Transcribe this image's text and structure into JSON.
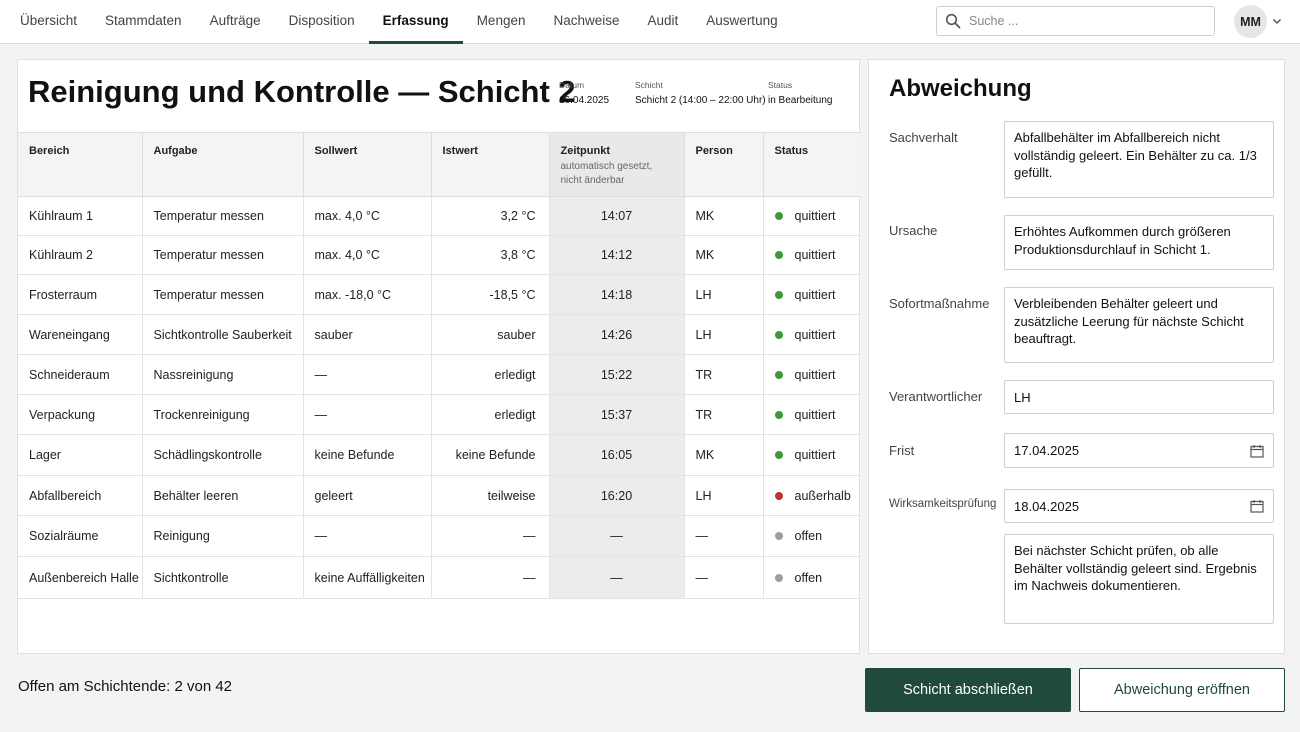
{
  "nav": {
    "tabs": [
      "Übersicht",
      "Stammdaten",
      "Aufträge",
      "Disposition",
      "Erfassung",
      "Mengen",
      "Nachweise",
      "Audit",
      "Auswertung"
    ],
    "active_tab": "Erfassung",
    "search_placeholder": "Suche ...",
    "user_initials": "MM"
  },
  "page": {
    "title": "Reinigung und Kontrolle — Schicht 2",
    "meta": {
      "date_label": "Datum",
      "date_value": "16.04.2025",
      "shift_label": "Schicht",
      "shift_value": "Schicht 2 (14:00 – 22:00 Uhr)",
      "status_label": "Status",
      "status_value": "in Bearbeitung"
    }
  },
  "table": {
    "headers": {
      "area": "Bereich",
      "task": "Aufgabe",
      "target": "Sollwert",
      "actual": "Istwert",
      "time": "Zeitpunkt",
      "time_sub": "automatisch gesetzt, nicht änderbar",
      "person": "Person",
      "status": "Status"
    },
    "rows": [
      {
        "area": "Kühlraum 1",
        "task": "Temperatur messen",
        "target": "max. 4,0 °C",
        "actual": "3,2 °C",
        "time": "14:07",
        "person": "MK",
        "status": "quittiert",
        "status_color": "#3a9a3a"
      },
      {
        "area": "Kühlraum 2",
        "task": "Temperatur messen",
        "target": "max. 4,0 °C",
        "actual": "3,8 °C",
        "time": "14:12",
        "person": "MK",
        "status": "quittiert",
        "status_color": "#3a9a3a"
      },
      {
        "area": "Frosterraum",
        "task": "Temperatur messen",
        "target": "max. -18,0 °C",
        "actual": "-18,5 °C",
        "time": "14:18",
        "person": "LH",
        "status": "quittiert",
        "status_color": "#3a9a3a"
      },
      {
        "area": "Wareneingang",
        "task": "Sichtkontrolle Sauberkeit",
        "target": "sauber",
        "actual": "sauber",
        "time": "14:26",
        "person": "LH",
        "status": "quittiert",
        "status_color": "#3a9a3a"
      },
      {
        "area": "Schneideraum",
        "task": "Nassreinigung",
        "target": "—",
        "actual": "erledigt",
        "time": "15:22",
        "person": "TR",
        "status": "quittiert",
        "status_color": "#3a9a3a"
      },
      {
        "area": "Verpackung",
        "task": "Trockenreinigung",
        "target": "—",
        "actual": "erledigt",
        "time": "15:37",
        "person": "TR",
        "status": "quittiert",
        "status_color": "#3a9a3a"
      },
      {
        "area": "Lager",
        "task": "Schädlingskontrolle",
        "target": "keine Befunde",
        "actual": "keine Befunde",
        "time": "16:05",
        "person": "MK",
        "status": "quittiert",
        "status_color": "#3a9a3a"
      },
      {
        "area": "Abfallbereich",
        "task": "Behälter leeren",
        "target": "geleert",
        "actual": "teilweise",
        "time": "16:20",
        "person": "LH",
        "status": "außerhalb",
        "status_color": "#c0303a"
      },
      {
        "area": "Sozialräume",
        "task": "Reinigung",
        "target": "—",
        "actual": "—",
        "time": "—",
        "person": "—",
        "status": "offen",
        "status_color": "#9e9e9e"
      },
      {
        "area": "Außenbereich Halle",
        "task": "Sichtkontrolle",
        "target": "keine Auffälligkeiten",
        "actual": "—",
        "time": "—",
        "person": "—",
        "status": "offen",
        "status_color": "#9e9e9e"
      }
    ]
  },
  "deviation": {
    "title": "Abweichung",
    "fields": {
      "facts_label": "Sachverhalt",
      "facts_value": "Abfallbehälter im Abfallbereich nicht vollständig geleert. Ein Behälter zu ca. 1/3 gefüllt.",
      "cause_label": "Ursache",
      "cause_value": "Erhöhtes Aufkommen durch größeren Produktionsdurchlauf in Schicht 1.",
      "action_label": "Sofortmaßnahme",
      "action_value": "Verbleibenden Behälter geleert und zusätzliche Leerung für nächste Schicht beauftragt.",
      "responsible_label": "Verantwortlicher",
      "responsible_value": "LH",
      "deadline_label": "Frist",
      "deadline_value": "17.04.2025",
      "effectiveness_label": "Wirksamkeitsprüfung",
      "effectiveness_date": "18.04.2025",
      "effectiveness_note": "Bei nächster Schicht prüfen, ob alle Behälter vollständig geleert sind. Ergebnis im Nachweis dokumentieren."
    }
  },
  "footer": {
    "open_text": "Offen am Schichtende: 2 von 42",
    "close_shift_label": "Schicht abschließen",
    "open_deviation_label": "Abweichung eröffnen"
  },
  "colors": {
    "accent": "#1f4a3c",
    "status_ok": "#3a9a3a",
    "status_out": "#c0303a",
    "status_open": "#9e9e9e"
  }
}
